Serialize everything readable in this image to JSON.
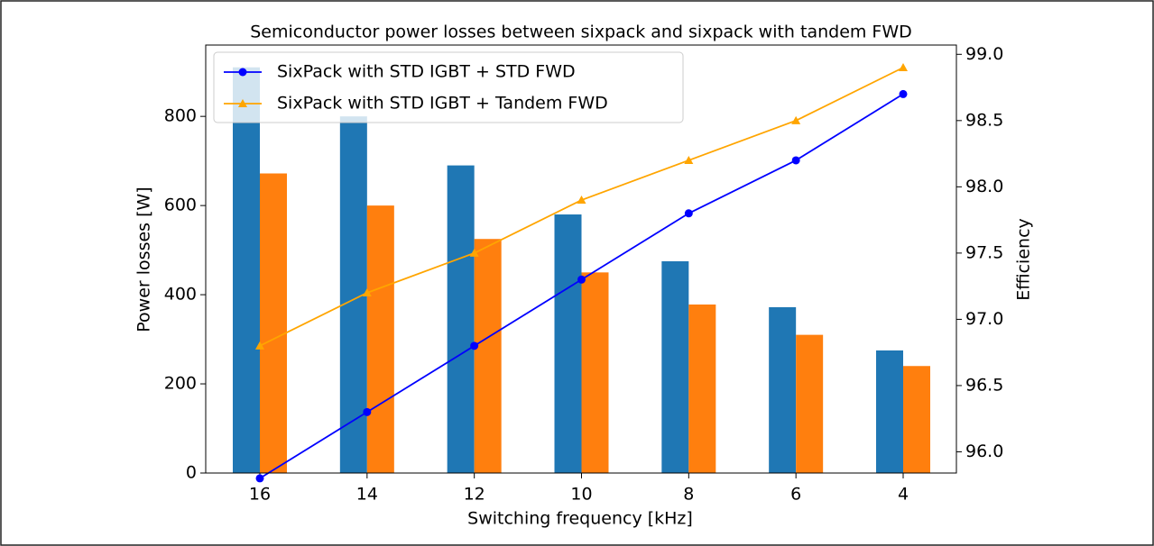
{
  "chart_data": {
    "type": "bar",
    "title": "Semiconductor power losses between sixpack and sixpack with tandem FWD",
    "xlabel": "Switching frequency [kHz]",
    "ylabel": "Power losses [W]",
    "y2label": "Efficiency",
    "categories": [
      "16",
      "14",
      "12",
      "10",
      "8",
      "6",
      "4"
    ],
    "series": [
      {
        "color": "#1f77b4",
        "values": [
          910,
          800,
          690,
          580,
          475,
          372,
          275
        ]
      },
      {
        "color": "#ff7f0e",
        "values": [
          672,
          600,
          525,
          450,
          378,
          310,
          240
        ]
      },
      {
        "name": "SixPack with STD IGBT + STD FWD",
        "type": "line",
        "axis": "y2",
        "color": "#0000ff",
        "marker": "circle",
        "values": [
          95.8,
          96.3,
          96.8,
          97.3,
          97.8,
          98.2,
          98.7
        ]
      },
      {
        "name": "SixPack with STD IGBT + Tandem FWD",
        "type": "line",
        "axis": "y2",
        "color": "#ffa500",
        "marker": "triangle",
        "values": [
          96.8,
          97.2,
          97.5,
          97.9,
          98.2,
          98.5,
          98.9
        ]
      }
    ],
    "ylim": [
      0,
      960
    ],
    "yticks": [
      0,
      200,
      400,
      600,
      800
    ],
    "y2lim": [
      95.84,
      99.07
    ],
    "y2ticks": [
      {
        "value": 96,
        "label": "96.0"
      },
      96.5,
      {
        "value": 97,
        "label": "97.0"
      },
      97.5,
      {
        "value": 98,
        "label": "98.0"
      },
      98.5,
      {
        "value": 99,
        "label": "99.0"
      }
    ],
    "legend": "upper left"
  }
}
